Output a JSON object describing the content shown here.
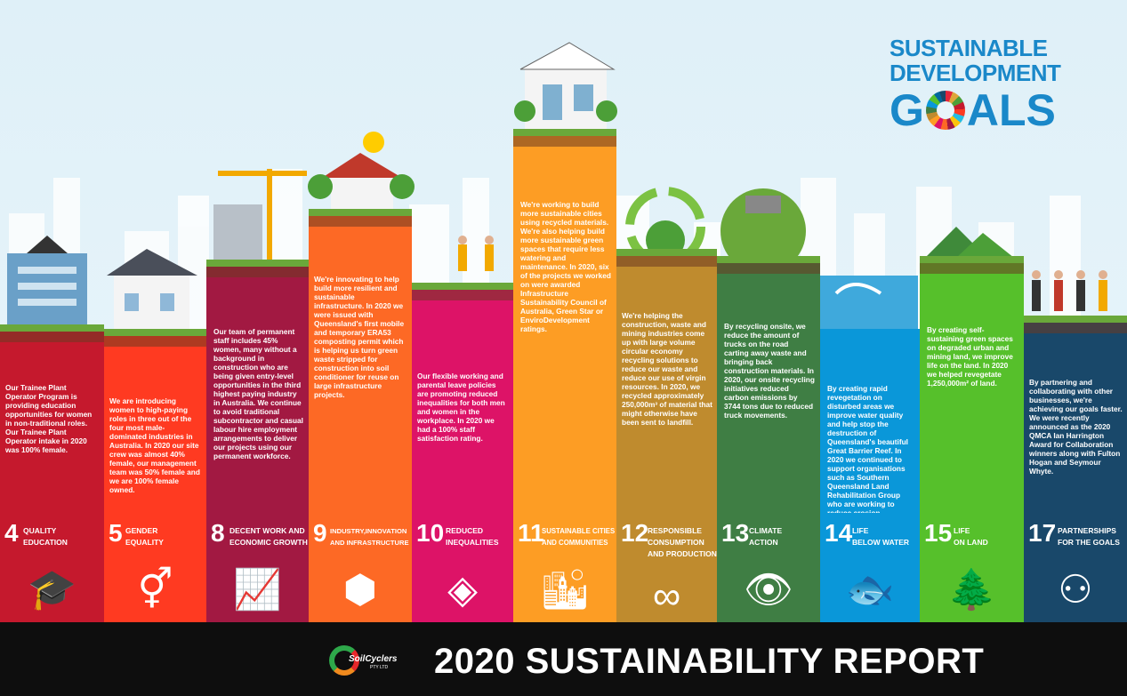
{
  "title": {
    "line1": "SUSTAINABLE",
    "line2": "DEVELOPMENT",
    "line3_g": "G",
    "line3_rest": "ALS"
  },
  "footer": {
    "brand": "SoilCyclers",
    "brand_sub": "PTY LTD",
    "report_title": "2020 SUSTAINABILITY REPORT"
  },
  "columns": [
    {
      "color": "#c5192d",
      "text": "Our Trainee Plant Operator Program is providing education opportunities for women in non-traditional roles. Our Trainee Plant Operator intake in 2020 was 100% female."
    },
    {
      "color": "#ff3a21",
      "text": "We are introducing women to high-paying roles in three out of the four most male-dominated industries in Australia. In 2020 our site crew was almost 40% female, our management team was 50% female and we are 100% female owned."
    },
    {
      "color": "#a21942",
      "text": "Our team of permanent staff includes 45% women, many without a background in construction who are being given entry-level opportunities in the third highest paying industry in Australia. We continue to avoid traditional subcontractor and casual labour hire employment arrangements to deliver our projects using our permanent workforce."
    },
    {
      "color": "#fd6925",
      "text": "We're innovating to help build more resilient and sustainable infrastructure. In 2020 we were issued with Queensland's first mobile and temporary ERA53 composting permit which is helping us turn green waste stripped for construction into soil conditioner for reuse on large infrastructure projects."
    },
    {
      "color": "#dd1367",
      "text": "Our flexible working and parental leave policies are promoting reduced inequalities for both men and women in the workplace. In 2020 we had a 100% staff satisfaction rating."
    },
    {
      "color": "#fd9d24",
      "text": "We're working to build more sustainable cities using recycled materials. We're also helping build more sustainable green spaces that require less watering and maintenance. In 2020, six of the projects we worked on were awarded Infrastructure Sustainability Council of Australia, Green Star or EnviroDevelopment ratings."
    },
    {
      "color": "#bf8b2e",
      "text": "We're helping the construction, waste and mining industries come up with large volume circular economy recycling solutions to reduce our waste and reduce our use of virgin resources. In 2020, we recycled approximately 250,000m³ of material that might otherwise have been sent to landfill."
    },
    {
      "color": "#3f7e44",
      "text": "By recycling onsite, we reduce the amount of trucks on the road carting away waste and bringing back construction materials. In 2020, our onsite recycling initiatives reduced carbon emissions by 3744 tons due to reduced truck movements."
    },
    {
      "color": "#0a97d9",
      "text": "By creating rapid revegetation on disturbed areas we improve water quality and help stop the destruction of Queensland's beautiful Great Barrier Reef. In 2020 we continued to support organisations such as Southern Queensland Land Rehabilitation Group who are working to reduce erosion."
    },
    {
      "color": "#56c02b",
      "text": "By creating self-sustaining green spaces on degraded urban and mining land, we improve life on the land. In 2020 we helped revegetate 1,250,000m² of land."
    },
    {
      "color": "#19486a",
      "text": "By partnering and collaborating with other businesses, we're achieving our goals faster. We were recently announced as the 2020 QMCA Ian Harrington Award for Collaboration winners along with Fulton Hogan and Seymour Whyte."
    }
  ],
  "goals": [
    {
      "num": "4",
      "l1": "QUALITY",
      "l2": "EDUCATION",
      "icon": "graduation-cap-icon",
      "glyph": "🎓"
    },
    {
      "num": "5",
      "l1": "GENDER",
      "l2": "EQUALITY",
      "icon": "gender-equality-icon",
      "glyph": "⚥"
    },
    {
      "num": "8",
      "l1": "DECENT WORK AND",
      "l2": "ECONOMIC GROWTH",
      "icon": "growth-chart-icon",
      "glyph": "📈"
    },
    {
      "num": "9",
      "l1": "INDUSTRY,INNOVATION",
      "l2": "AND INFRASTRUCTURE",
      "icon": "infrastructure-cube-icon",
      "glyph": "⬢"
    },
    {
      "num": "10",
      "l1": "REDUCED",
      "l2": "INEQUALITIES",
      "icon": "inequality-arrows-icon",
      "glyph": "◈"
    },
    {
      "num": "11",
      "l1": "SUSTAINABLE CITIES",
      "l2": "AND COMMUNITIES",
      "icon": "city-buildings-icon",
      "glyph": "🏙"
    },
    {
      "num": "12",
      "l1": "RESPONSIBLE",
      "l2": "CONSUMPTION",
      "l3": "AND PRODUCTION",
      "icon": "infinity-loop-icon",
      "glyph": "∞"
    },
    {
      "num": "13",
      "l1": "CLIMATE",
      "l2": "ACTION",
      "icon": "eye-globe-icon",
      "glyph": "👁"
    },
    {
      "num": "14",
      "l1": "LIFE",
      "l2": "BELOW WATER",
      "icon": "fish-waves-icon",
      "glyph": "🐟"
    },
    {
      "num": "15",
      "l1": "LIFE",
      "l2": "ON LAND",
      "icon": "tree-land-icon",
      "glyph": "🌲"
    },
    {
      "num": "17",
      "l1": "PARTNERSHIPS",
      "l2": "FOR THE GOALS",
      "icon": "partnership-people-icon",
      "glyph": "⚇"
    }
  ]
}
